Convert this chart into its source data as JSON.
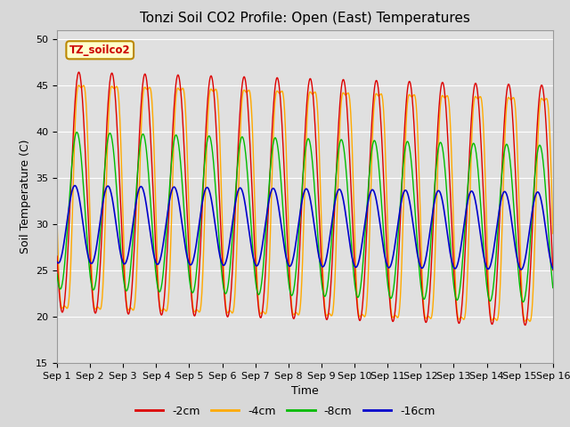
{
  "title": "Tonzi Soil CO2 Profile: Open (East) Temperatures",
  "xlabel": "Time",
  "ylabel": "Soil Temperature (C)",
  "ylim": [
    15,
    51
  ],
  "yticks": [
    15,
    20,
    25,
    30,
    35,
    40,
    45,
    50
  ],
  "xlim": [
    0,
    15
  ],
  "xtick_labels": [
    "Sep 1",
    "Sep 2",
    "Sep 3",
    "Sep 4",
    "Sep 5",
    "Sep 6",
    "Sep 7",
    "Sep 8",
    "Sep 9",
    "Sep 10",
    "Sep 11",
    "Sep 12",
    "Sep 13",
    "Sep 14",
    "Sep 15",
    "Sep 16"
  ],
  "legend_label": "TZ_soilco2",
  "series": [
    {
      "label": "-2cm",
      "color": "#dd0000"
    },
    {
      "label": "-4cm",
      "color": "#ffaa00"
    },
    {
      "label": "-8cm",
      "color": "#00bb00"
    },
    {
      "label": "-16cm",
      "color": "#0000cc"
    }
  ],
  "fig_bg_color": "#d8d8d8",
  "plot_bg_color": "#e0e0e0",
  "grid_color": "#ffffff",
  "title_fontsize": 11,
  "axis_label_fontsize": 9,
  "tick_fontsize": 8,
  "legend_box_facecolor": "#ffffcc",
  "legend_box_edgecolor": "#bb8800"
}
